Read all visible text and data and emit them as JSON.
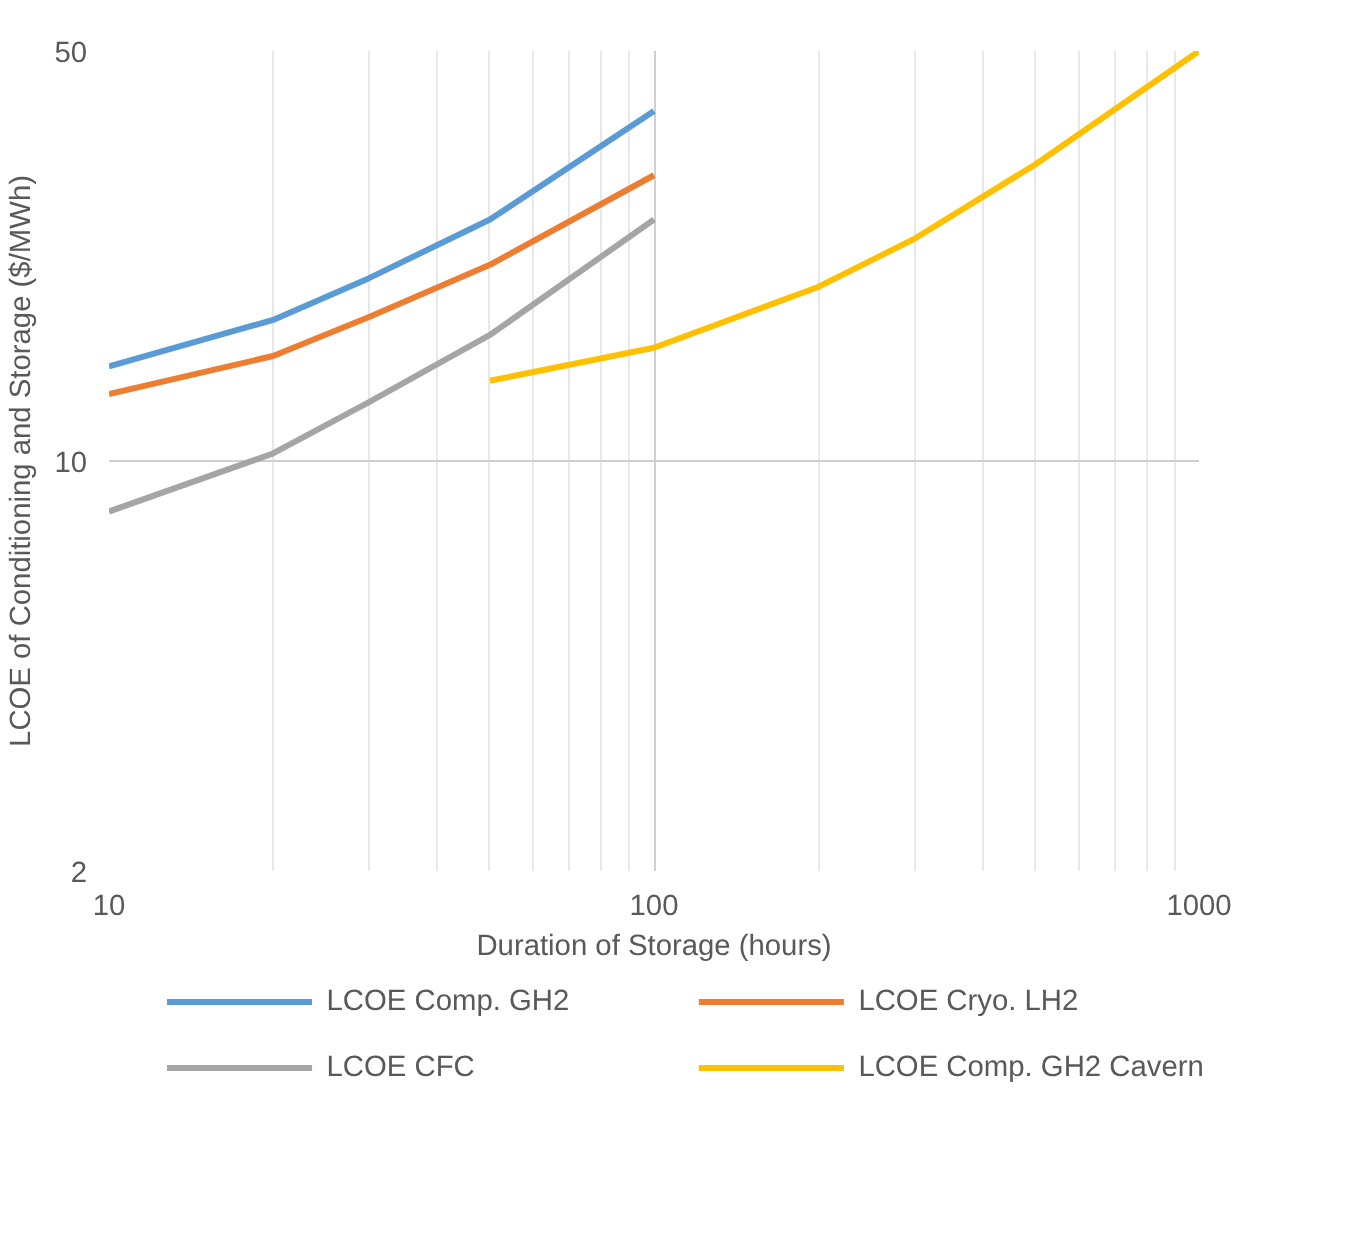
{
  "chart_data": {
    "type": "line",
    "xlabel": "Duration of Storage (hours)",
    "ylabel": "LCOE of Conditioning and Storage ($/MWh)",
    "log": "xy",
    "xlim": [
      10,
      1000
    ],
    "ylim": [
      2,
      50
    ],
    "xticks": [
      10,
      100,
      1000
    ],
    "yticks": [
      2,
      10,
      50
    ],
    "grid": true,
    "legend": "bottom",
    "marker": "none",
    "line_style": "solid",
    "series": [
      {
        "name": "LCOE Comp. GH2",
        "color": "#5b9bd5",
        "x": [
          10,
          20,
          30,
          50,
          100
        ],
        "values": [
          14.5,
          17.4,
          20.5,
          25.8,
          39.5
        ]
      },
      {
        "name": "LCOE Cryo. LH2",
        "color": "#ed7d31",
        "x": [
          10,
          20,
          30,
          50,
          100
        ],
        "values": [
          13.0,
          15.1,
          17.6,
          21.6,
          30.7
        ]
      },
      {
        "name": "LCOE CFC",
        "color": "#a5a5a5",
        "x": [
          10,
          20,
          30,
          50,
          100
        ],
        "values": [
          8.2,
          10.3,
          12.6,
          16.4,
          25.8
        ]
      },
      {
        "name": "LCOE Comp. GH2 Cavern",
        "color": "#ffc000",
        "x": [
          50,
          100,
          200,
          300,
          500,
          1000
        ],
        "values": [
          13.7,
          15.6,
          19.8,
          23.9,
          32.0,
          50
        ]
      }
    ]
  }
}
